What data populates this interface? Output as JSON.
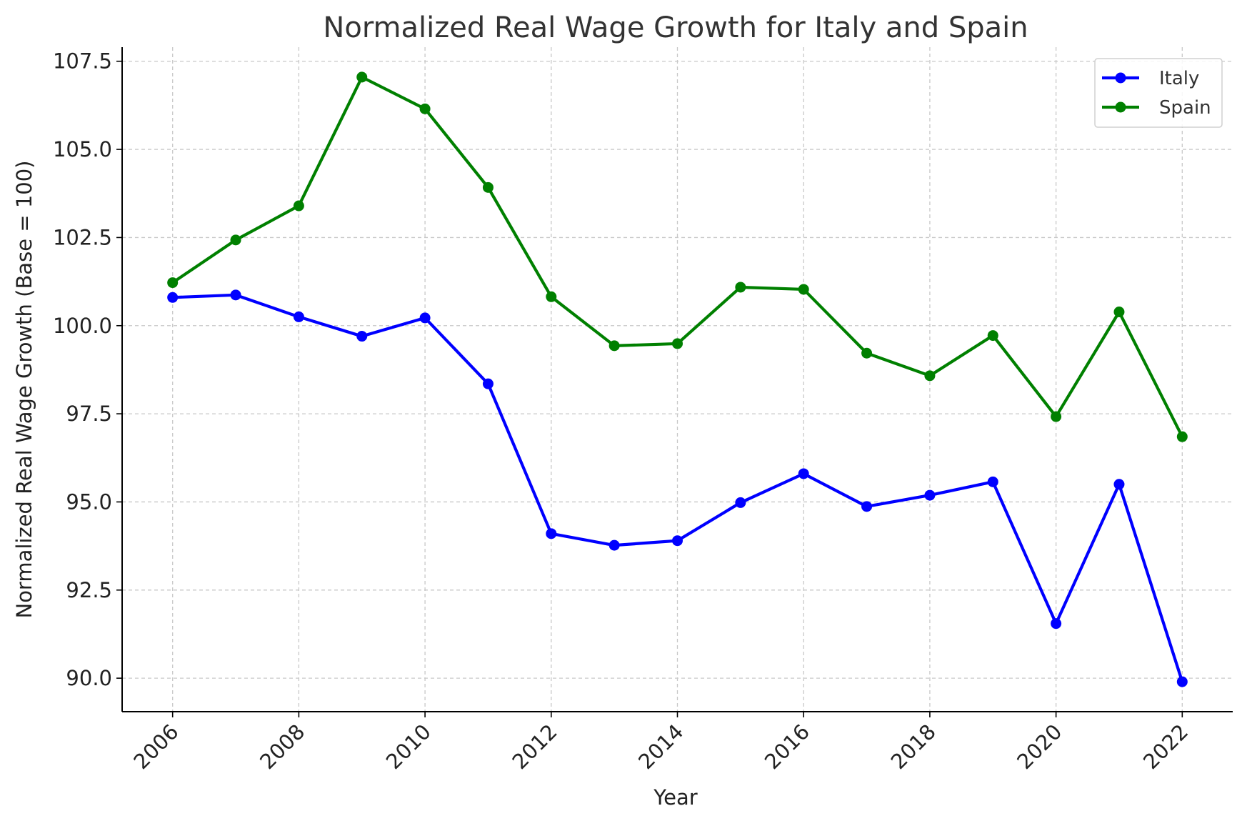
{
  "chart_data": {
    "type": "line",
    "title": "Normalized Real Wage Growth for Italy and Spain",
    "xlabel": "Year",
    "ylabel": "Normalized Real Wage Growth (Base = 100)",
    "x": [
      2006,
      2007,
      2008,
      2009,
      2010,
      2011,
      2012,
      2013,
      2014,
      2015,
      2016,
      2017,
      2018,
      2019,
      2020,
      2021,
      2022
    ],
    "xticks": [
      "2006",
      "2008",
      "2010",
      "2012",
      "2014",
      "2016",
      "2018",
      "2020",
      "2022"
    ],
    "yticks": [
      "90.0",
      "92.5",
      "95.0",
      "97.5",
      "100.0",
      "102.5",
      "105.0",
      "107.5"
    ],
    "xlim": [
      2005.2,
      2022.8
    ],
    "ylim": [
      89.05,
      107.9
    ],
    "grid": true,
    "legend_position": "top-right",
    "series": [
      {
        "name": "Italy",
        "color": "#0000ff",
        "values": [
          100.8,
          100.87,
          100.25,
          99.7,
          100.22,
          98.35,
          94.1,
          93.77,
          93.9,
          94.98,
          95.8,
          94.87,
          95.19,
          95.57,
          91.55,
          95.5,
          89.9
        ]
      },
      {
        "name": "Spain",
        "color": "#008000",
        "values": [
          101.22,
          102.43,
          103.4,
          107.05,
          106.15,
          103.92,
          100.82,
          99.43,
          99.49,
          101.09,
          101.03,
          99.22,
          98.58,
          99.72,
          97.42,
          100.39,
          96.85
        ]
      }
    ]
  }
}
